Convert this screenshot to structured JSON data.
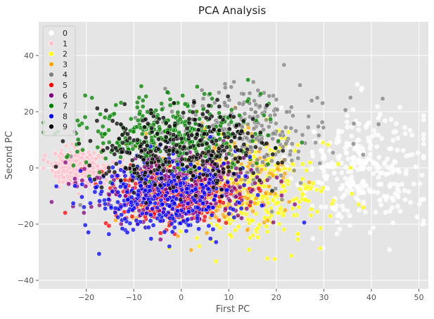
{
  "chart_data": {
    "type": "scatter",
    "title": "PCA Analysis",
    "xlabel": "First PC",
    "ylabel": "Second PC",
    "xlim": [
      -30,
      52
    ],
    "ylim": [
      -43,
      52
    ],
    "xticks": [
      -20,
      -10,
      0,
      10,
      20,
      30,
      40,
      50
    ],
    "yticks": [
      -40,
      -20,
      0,
      20,
      40
    ],
    "grid": true,
    "legend_position": "top-left",
    "series": [
      {
        "name": "0",
        "color": "#ffffff",
        "center": [
          38,
          0
        ],
        "spread": [
          7,
          11
        ],
        "n": 320
      },
      {
        "name": "1",
        "color": "#ffc0cb",
        "center": [
          -21,
          0
        ],
        "spread": [
          3,
          2.8
        ],
        "n": 420
      },
      {
        "name": "2",
        "color": "#ffff00",
        "center": [
          15,
          -8
        ],
        "spread": [
          8,
          9
        ],
        "n": 340
      },
      {
        "name": "3",
        "color": "#ffa500",
        "center": [
          6,
          -5
        ],
        "spread": [
          8,
          8
        ],
        "n": 300
      },
      {
        "name": "4",
        "color": "#808080",
        "center": [
          14,
          12
        ],
        "spread": [
          9,
          9
        ],
        "n": 260
      },
      {
        "name": "5",
        "color": "#ff0000",
        "center": [
          -2,
          -10
        ],
        "spread": [
          7,
          6
        ],
        "n": 330
      },
      {
        "name": "6",
        "color": "#800080",
        "center": [
          0,
          -6
        ],
        "spread": [
          9,
          6
        ],
        "n": 340
      },
      {
        "name": "7",
        "color": "#008000",
        "center": [
          -3,
          12
        ],
        "spread": [
          9,
          7
        ],
        "n": 360
      },
      {
        "name": "8",
        "color": "#0000ff",
        "center": [
          -4,
          -10
        ],
        "spread": [
          8,
          7
        ],
        "n": 340
      },
      {
        "name": "9",
        "color": "#000000",
        "center": [
          0,
          7
        ],
        "spread": [
          9,
          7
        ],
        "n": 330
      }
    ]
  }
}
